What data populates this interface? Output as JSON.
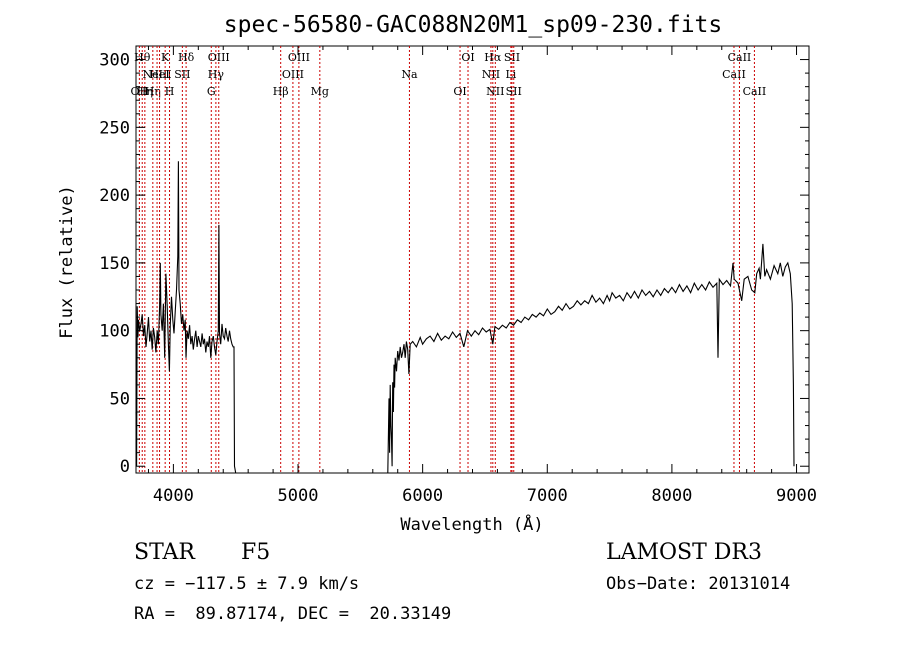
{
  "chart_data": {
    "type": "line",
    "title": "spec-56580-GAC088N20M1_sp09-230.fits",
    "xlabel": "Wavelength (Å)",
    "ylabel": "Flux (relative)",
    "xlim": [
      3700,
      9100
    ],
    "ylim": [
      -5,
      310
    ],
    "x_ticks": [
      "4000",
      "5000",
      "6000",
      "7000",
      "8000",
      "9000"
    ],
    "y_ticks": [
      "0",
      "50",
      "100",
      "150",
      "200",
      "250",
      "300"
    ],
    "grid": false,
    "line_color": "#000000",
    "marker_color": "#cc0000",
    "spectrum": [
      [
        3700,
        40
      ],
      [
        3705,
        0
      ],
      [
        3710,
        118
      ],
      [
        3715,
        95
      ],
      [
        3720,
        108
      ],
      [
        3730,
        100
      ],
      [
        3740,
        105
      ],
      [
        3750,
        112
      ],
      [
        3760,
        96
      ],
      [
        3770,
        104
      ],
      [
        3780,
        88
      ],
      [
        3790,
        98
      ],
      [
        3800,
        110
      ],
      [
        3810,
        92
      ],
      [
        3820,
        100
      ],
      [
        3830,
        86
      ],
      [
        3840,
        102
      ],
      [
        3850,
        95
      ],
      [
        3860,
        84
      ],
      [
        3870,
        100
      ],
      [
        3880,
        90
      ],
      [
        3890,
        120
      ],
      [
        3895,
        150
      ],
      [
        3900,
        112
      ],
      [
        3910,
        100
      ],
      [
        3920,
        120
      ],
      [
        3930,
        80
      ],
      [
        3940,
        142
      ],
      [
        3950,
        118
      ],
      [
        3960,
        90
      ],
      [
        3968,
        70
      ],
      [
        3975,
        105
      ],
      [
        3985,
        125
      ],
      [
        3995,
        108
      ],
      [
        4005,
        98
      ],
      [
        4015,
        115
      ],
      [
        4025,
        130
      ],
      [
        4035,
        155
      ],
      [
        4040,
        225
      ],
      [
        4045,
        130
      ],
      [
        4055,
        120
      ],
      [
        4065,
        105
      ],
      [
        4075,
        112
      ],
      [
        4085,
        100
      ],
      [
        4095,
        108
      ],
      [
        4101,
        80
      ],
      [
        4110,
        100
      ],
      [
        4120,
        94
      ],
      [
        4130,
        104
      ],
      [
        4140,
        90
      ],
      [
        4150,
        96
      ],
      [
        4160,
        86
      ],
      [
        4170,
        94
      ],
      [
        4180,
        100
      ],
      [
        4190,
        88
      ],
      [
        4200,
        96
      ],
      [
        4210,
        92
      ],
      [
        4220,
        88
      ],
      [
        4230,
        98
      ],
      [
        4240,
        90
      ],
      [
        4250,
        94
      ],
      [
        4260,
        84
      ],
      [
        4270,
        92
      ],
      [
        4280,
        88
      ],
      [
        4290,
        96
      ],
      [
        4300,
        80
      ],
      [
        4310,
        92
      ],
      [
        4320,
        96
      ],
      [
        4330,
        88
      ],
      [
        4340,
        82
      ],
      [
        4350,
        92
      ],
      [
        4360,
        100
      ],
      [
        4365,
        178
      ],
      [
        4370,
        98
      ],
      [
        4380,
        90
      ],
      [
        4390,
        105
      ],
      [
        4400,
        96
      ],
      [
        4410,
        94
      ],
      [
        4420,
        102
      ],
      [
        4430,
        96
      ],
      [
        4440,
        92
      ],
      [
        4450,
        100
      ],
      [
        4460,
        94
      ],
      [
        4470,
        90
      ],
      [
        4480,
        88
      ],
      [
        4486,
        88
      ],
      [
        4490,
        0
      ],
      [
        4500,
        -5
      ],
      [
        5720,
        -5
      ],
      [
        5730,
        50
      ],
      [
        5735,
        10
      ],
      [
        5740,
        60
      ],
      [
        5745,
        30
      ],
      [
        5750,
        20
      ],
      [
        5755,
        0
      ],
      [
        5760,
        62
      ],
      [
        5765,
        40
      ],
      [
        5770,
        75
      ],
      [
        5775,
        58
      ],
      [
        5780,
        80
      ],
      [
        5790,
        70
      ],
      [
        5800,
        85
      ],
      [
        5810,
        78
      ],
      [
        5820,
        88
      ],
      [
        5830,
        80
      ],
      [
        5840,
        84
      ],
      [
        5850,
        90
      ],
      [
        5860,
        80
      ],
      [
        5870,
        92
      ],
      [
        5880,
        86
      ],
      [
        5890,
        68
      ],
      [
        5895,
        80
      ],
      [
        5900,
        90
      ],
      [
        5920,
        92
      ],
      [
        5950,
        88
      ],
      [
        5980,
        95
      ],
      [
        6000,
        90
      ],
      [
        6030,
        94
      ],
      [
        6060,
        96
      ],
      [
        6090,
        92
      ],
      [
        6120,
        98
      ],
      [
        6150,
        93
      ],
      [
        6180,
        96
      ],
      [
        6210,
        94
      ],
      [
        6240,
        99
      ],
      [
        6270,
        95
      ],
      [
        6300,
        98
      ],
      [
        6330,
        88
      ],
      [
        6360,
        100
      ],
      [
        6390,
        96
      ],
      [
        6420,
        100
      ],
      [
        6450,
        97
      ],
      [
        6480,
        102
      ],
      [
        6510,
        99
      ],
      [
        6540,
        101
      ],
      [
        6563,
        90
      ],
      [
        6580,
        103
      ],
      [
        6610,
        101
      ],
      [
        6640,
        104
      ],
      [
        6670,
        102
      ],
      [
        6700,
        106
      ],
      [
        6730,
        104
      ],
      [
        6760,
        108
      ],
      [
        6790,
        106
      ],
      [
        6820,
        110
      ],
      [
        6850,
        108
      ],
      [
        6880,
        112
      ],
      [
        6910,
        110
      ],
      [
        6940,
        113
      ],
      [
        6970,
        111
      ],
      [
        7000,
        116
      ],
      [
        7030,
        112
      ],
      [
        7060,
        114
      ],
      [
        7090,
        118
      ],
      [
        7120,
        115
      ],
      [
        7150,
        120
      ],
      [
        7180,
        116
      ],
      [
        7210,
        118
      ],
      [
        7240,
        122
      ],
      [
        7270,
        119
      ],
      [
        7300,
        122
      ],
      [
        7330,
        120
      ],
      [
        7360,
        126
      ],
      [
        7390,
        121
      ],
      [
        7420,
        124
      ],
      [
        7450,
        120
      ],
      [
        7480,
        126
      ],
      [
        7500,
        122
      ],
      [
        7520,
        128
      ],
      [
        7550,
        124
      ],
      [
        7580,
        126
      ],
      [
        7610,
        122
      ],
      [
        7640,
        128
      ],
      [
        7670,
        124
      ],
      [
        7700,
        129
      ],
      [
        7730,
        124
      ],
      [
        7760,
        130
      ],
      [
        7790,
        126
      ],
      [
        7820,
        129
      ],
      [
        7850,
        125
      ],
      [
        7880,
        130
      ],
      [
        7910,
        126
      ],
      [
        7940,
        131
      ],
      [
        7970,
        128
      ],
      [
        8000,
        132
      ],
      [
        8030,
        128
      ],
      [
        8060,
        134
      ],
      [
        8090,
        129
      ],
      [
        8120,
        133
      ],
      [
        8150,
        128
      ],
      [
        8180,
        135
      ],
      [
        8210,
        130
      ],
      [
        8240,
        134
      ],
      [
        8270,
        130
      ],
      [
        8300,
        136
      ],
      [
        8330,
        132
      ],
      [
        8360,
        135
      ],
      [
        8370,
        80
      ],
      [
        8380,
        138
      ],
      [
        8410,
        134
      ],
      [
        8440,
        137
      ],
      [
        8470,
        133
      ],
      [
        8490,
        150
      ],
      [
        8500,
        138
      ],
      [
        8530,
        135
      ],
      [
        8560,
        122
      ],
      [
        8580,
        138
      ],
      [
        8610,
        140
      ],
      [
        8640,
        130
      ],
      [
        8665,
        128
      ],
      [
        8680,
        142
      ],
      [
        8700,
        146
      ],
      [
        8710,
        138
      ],
      [
        8730,
        164
      ],
      [
        8745,
        140
      ],
      [
        8760,
        145
      ],
      [
        8790,
        138
      ],
      [
        8820,
        148
      ],
      [
        8850,
        142
      ],
      [
        8870,
        150
      ],
      [
        8890,
        140
      ],
      [
        8910,
        147
      ],
      [
        8930,
        150
      ],
      [
        8950,
        142
      ],
      [
        8965,
        120
      ],
      [
        8975,
        60
      ],
      [
        8980,
        0
      ]
    ],
    "line_markers": [
      {
        "x": 3727,
        "label": "OII",
        "row": 3
      },
      {
        "x": 3750,
        "label": "Hθ",
        "row": 1
      },
      {
        "x": 3771,
        "label": "Hη",
        "row": 3
      },
      {
        "x": 3835,
        "label": "Hη",
        "row": 3
      },
      {
        "x": 3869,
        "label": "NeIII",
        "row": 2
      },
      {
        "x": 3889,
        "label": "HeI",
        "row": 2
      },
      {
        "x": 3934,
        "label": "K",
        "row": 1
      },
      {
        "x": 3969,
        "label": "H",
        "row": 3
      },
      {
        "x": 4072,
        "label": "SII",
        "row": 2
      },
      {
        "x": 4102,
        "label": "Hδ",
        "row": 1
      },
      {
        "x": 4304,
        "label": "G",
        "row": 3
      },
      {
        "x": 4341,
        "label": "Hγ",
        "row": 2
      },
      {
        "x": 4364,
        "label": "OIII",
        "row": 1
      },
      {
        "x": 4861,
        "label": "Hβ",
        "row": 3
      },
      {
        "x": 4959,
        "label": "OIII",
        "row": 2
      },
      {
        "x": 5007,
        "label": "OIII",
        "row": 1
      },
      {
        "x": 5175,
        "label": "Mg",
        "row": 3
      },
      {
        "x": 5894,
        "label": "Na",
        "row": 2
      },
      {
        "x": 6300,
        "label": "OI",
        "row": 3
      },
      {
        "x": 6364,
        "label": "OI",
        "row": 1
      },
      {
        "x": 6548,
        "label": "NII",
        "row": 2
      },
      {
        "x": 6563,
        "label": "Hα",
        "row": 1
      },
      {
        "x": 6583,
        "label": "NII",
        "row": 3
      },
      {
        "x": 6708,
        "label": "Li",
        "row": 2
      },
      {
        "x": 6717,
        "label": "SII",
        "row": 1
      },
      {
        "x": 6731,
        "label": "SII",
        "row": 3
      },
      {
        "x": 8498,
        "label": "CaII",
        "row": 2
      },
      {
        "x": 8542,
        "label": "CaII",
        "row": 1
      },
      {
        "x": 8662,
        "label": "CaII",
        "row": 3
      }
    ]
  },
  "info": {
    "object_class": "STAR",
    "subclass": "F5",
    "survey": "LAMOST DR3",
    "cz": "cz = −117.5 ± 7.9 km/s",
    "obs_date": "Obs−Date: 20131014",
    "radec": "RA =  89.87174, DEC =  20.33149"
  }
}
